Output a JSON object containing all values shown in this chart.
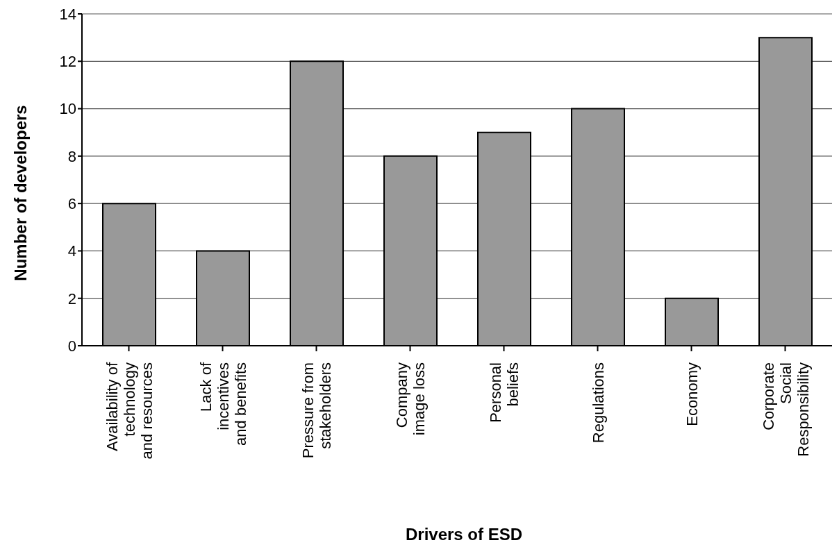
{
  "chart_data": {
    "type": "bar",
    "xlabel": "Drivers of ESD",
    "ylabel": "Number of developers",
    "categories": [
      "Availability of\ntechnology\nand resources",
      "Lack of\nincentives\nand benefits",
      "Pressure from\nstakeholders",
      "Company\nimage loss",
      "Personal\nbeliefs",
      "Regulations",
      "Economy",
      "Corporate\nSocial\nResponsibility"
    ],
    "values": [
      6,
      4,
      12,
      8,
      9,
      10,
      2,
      13
    ],
    "color": "#999999",
    "ylim": [
      0,
      14
    ],
    "yticks": [
      0,
      2,
      4,
      6,
      8,
      10,
      12,
      14
    ],
    "grid": "y"
  }
}
